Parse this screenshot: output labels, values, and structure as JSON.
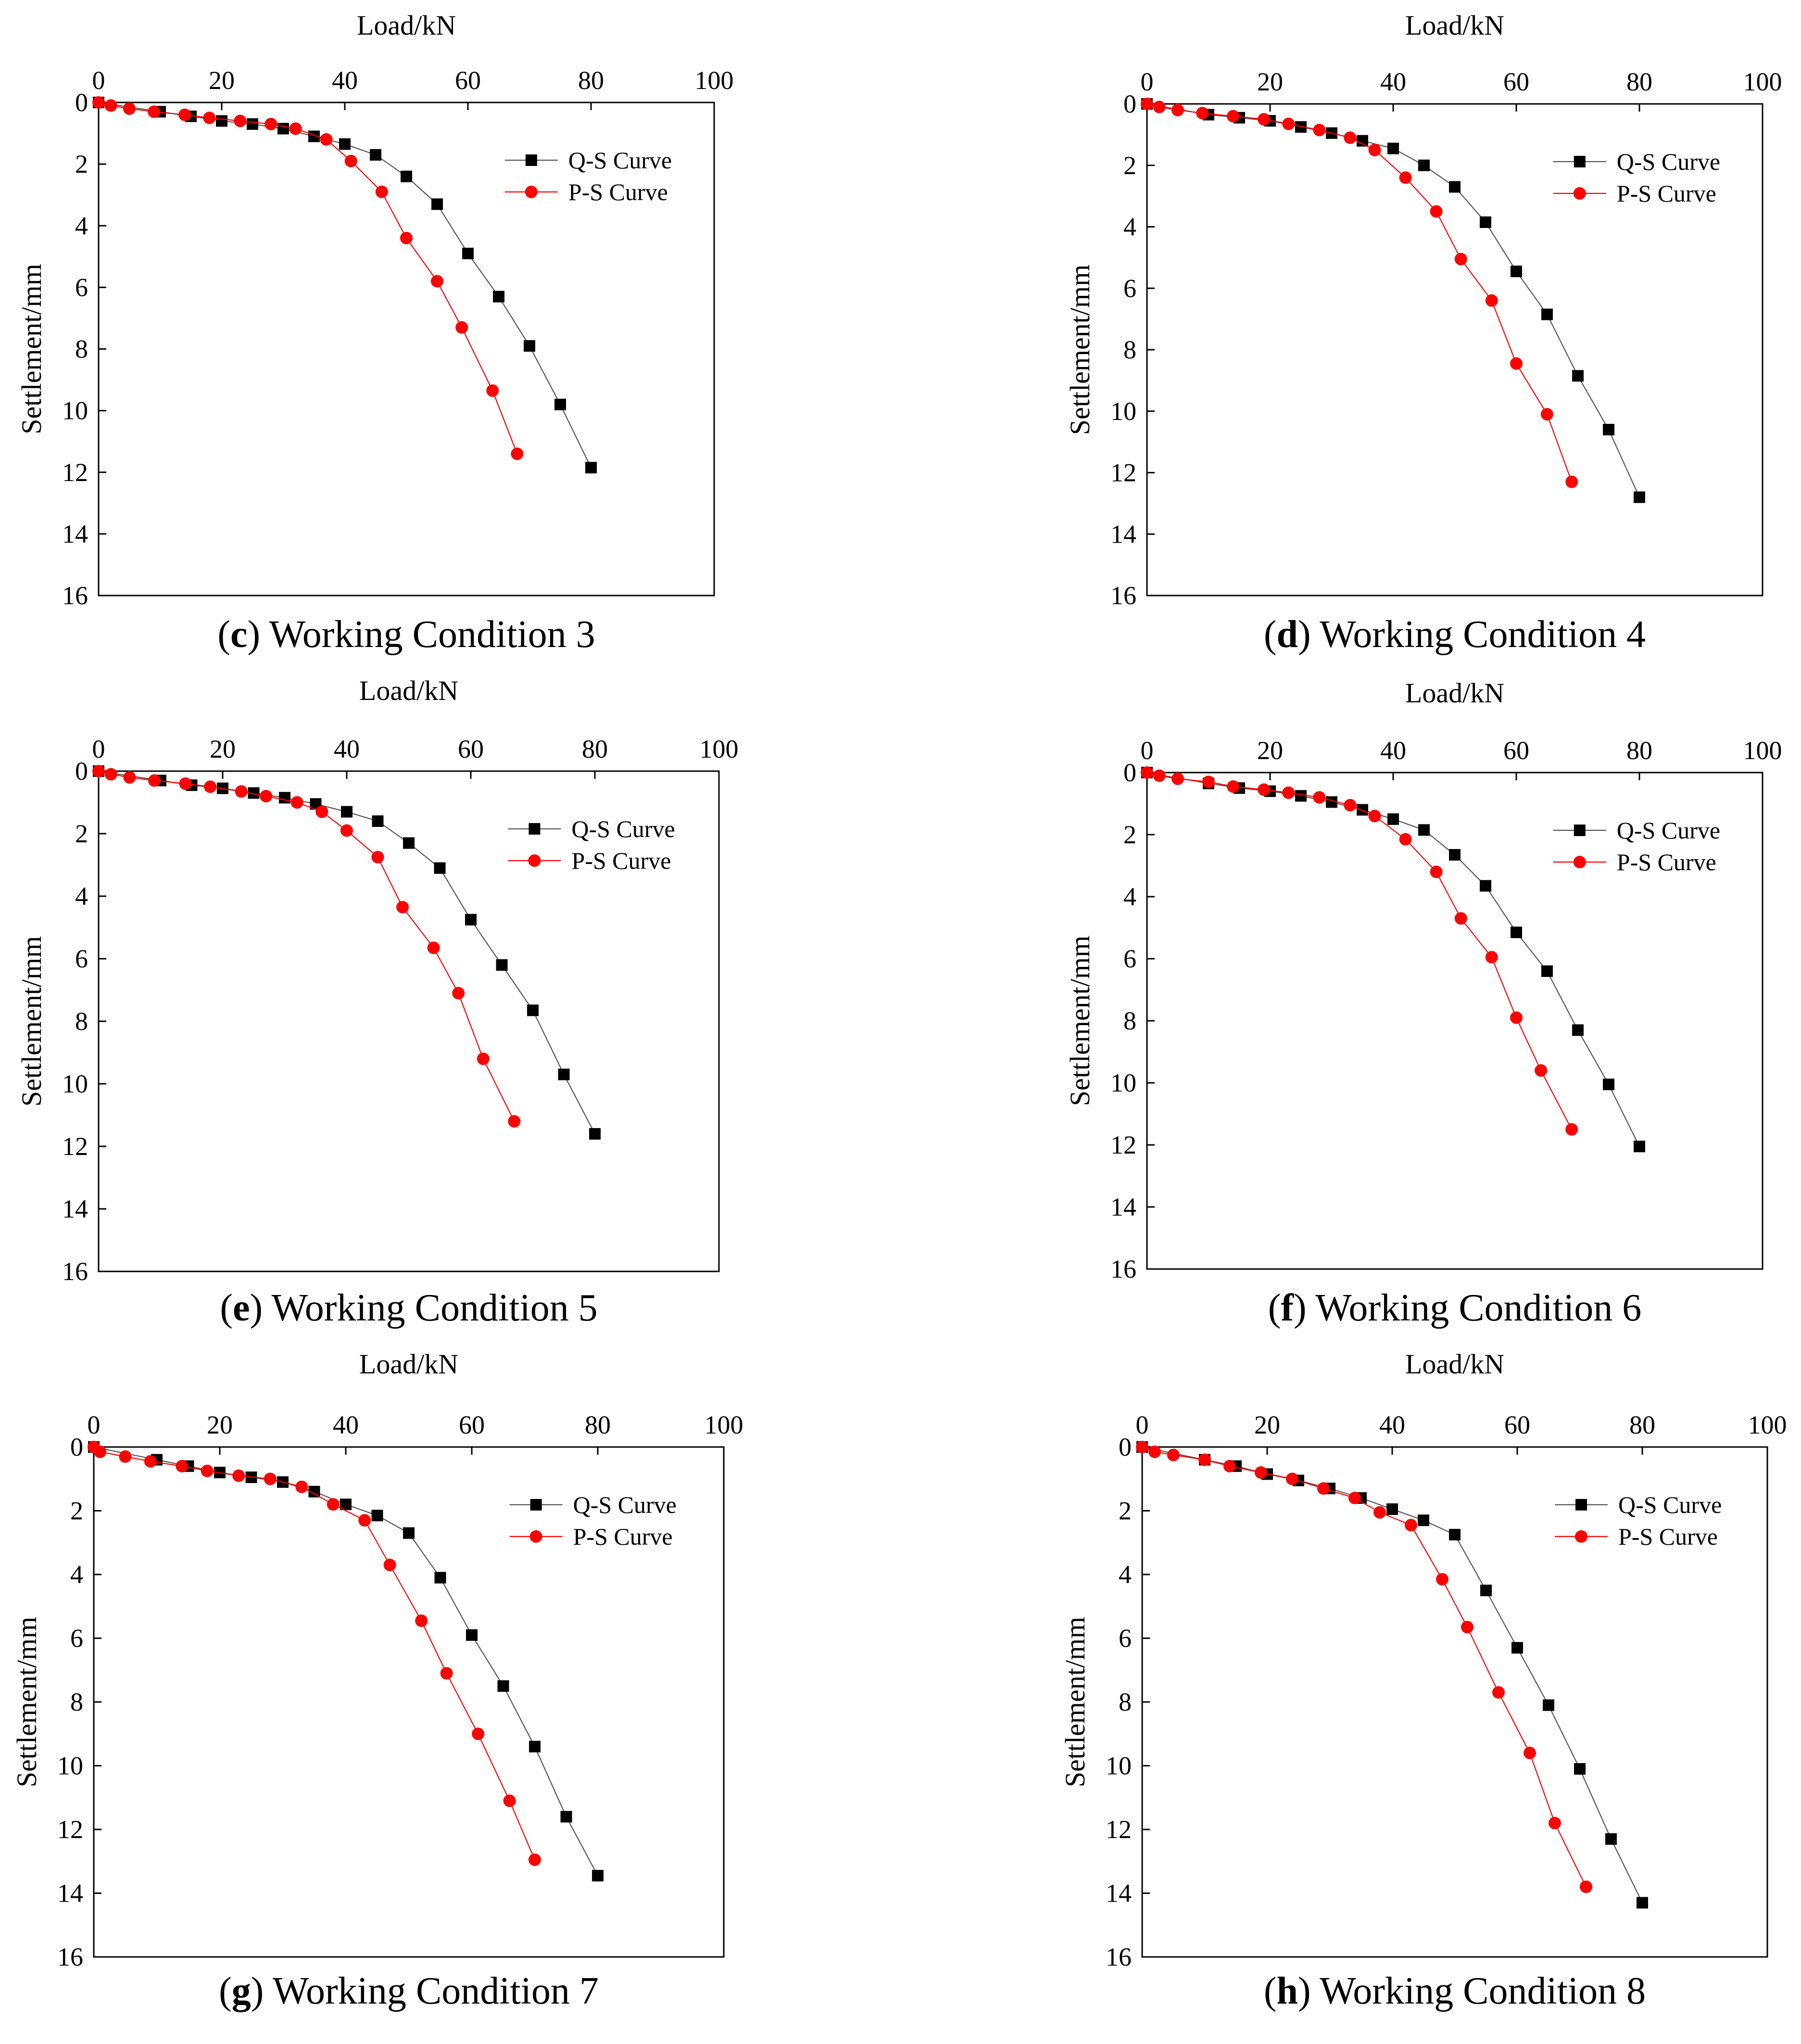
{
  "figure": {
    "panels": [
      {
        "id": "c",
        "caption": {
          "letter": "c",
          "paren_open": "(",
          "paren_close": ")",
          "text": " Working Condition 3"
        }
      },
      {
        "id": "d",
        "caption": {
          "letter": "d",
          "paren_open": "(",
          "paren_close": ")",
          "text": " Working Condition 4"
        }
      },
      {
        "id": "e",
        "caption": {
          "letter": "e",
          "paren_open": "(",
          "paren_close": ")",
          "text": " Working Condition 5"
        }
      },
      {
        "id": "f",
        "caption": {
          "letter": "f",
          "paren_open": "(",
          "paren_close": ")",
          "text": " Working Condition 6"
        }
      },
      {
        "id": "g",
        "caption": {
          "letter": "g",
          "paren_open": "(",
          "paren_close": ")",
          "text": " Working Condition 7"
        }
      },
      {
        "id": "h",
        "caption": {
          "letter": "h",
          "paren_open": "(",
          "paren_close": ")",
          "text": " Working Condition 8"
        }
      }
    ]
  },
  "chart_data": [
    {
      "type": "scatter",
      "title": "(c) Working Condition 3",
      "xlabel": "Load/kN",
      "ylabel": "Settlement/mm",
      "xlim": [
        0,
        100
      ],
      "ylim": [
        0,
        16
      ],
      "xticks": [
        "0",
        "20",
        "40",
        "60",
        "80",
        "100"
      ],
      "yticks": [
        "0",
        "2",
        "4",
        "6",
        "8",
        "10",
        "12",
        "14",
        "16"
      ],
      "legend_position": "top-right",
      "series": [
        {
          "name": "Q-S Curve",
          "color": "#000000",
          "marker": "square",
          "x": [
            0,
            10,
            15,
            20,
            25,
            30,
            35,
            40,
            45,
            50,
            55,
            60,
            65,
            70,
            75,
            80
          ],
          "y": [
            0,
            0.3,
            0.45,
            0.6,
            0.7,
            0.85,
            1.1,
            1.35,
            1.7,
            2.4,
            3.3,
            4.9,
            6.3,
            7.9,
            9.8,
            11.85
          ]
        },
        {
          "name": "P-S Curve",
          "color": "#ff0000",
          "marker": "circle",
          "x": [
            0,
            2,
            5,
            9,
            14,
            18,
            23,
            28,
            32,
            37,
            41,
            46,
            50,
            55,
            59,
            64,
            68
          ],
          "y": [
            0,
            0.1,
            0.2,
            0.3,
            0.4,
            0.5,
            0.6,
            0.7,
            0.85,
            1.2,
            1.9,
            2.9,
            4.4,
            5.8,
            7.3,
            9.35,
            11.4
          ]
        }
      ]
    },
    {
      "type": "scatter",
      "title": "(d) Working Condition 4",
      "xlabel": "Load/kN",
      "ylabel": "Settlement/mm",
      "xlim": [
        0,
        100
      ],
      "ylim": [
        0,
        16
      ],
      "xticks": [
        "0",
        "20",
        "40",
        "60",
        "80",
        "100"
      ],
      "yticks": [
        "0",
        "2",
        "4",
        "6",
        "8",
        "10",
        "12",
        "14",
        "16"
      ],
      "legend_position": "top-right",
      "series": [
        {
          "name": "Q-S Curve",
          "color": "#000000",
          "marker": "square",
          "x": [
            0,
            10,
            15,
            20,
            25,
            30,
            35,
            40,
            45,
            50,
            55,
            60,
            65,
            70,
            75,
            80
          ],
          "y": [
            0,
            0.35,
            0.45,
            0.55,
            0.75,
            0.95,
            1.2,
            1.45,
            2.0,
            2.7,
            3.85,
            5.45,
            6.85,
            8.85,
            10.6,
            12.8
          ]
        },
        {
          "name": "P-S Curve",
          "color": "#ff0000",
          "marker": "circle",
          "x": [
            0,
            2,
            5,
            9,
            14,
            19,
            23,
            28,
            33,
            37,
            42,
            47,
            51,
            56,
            60,
            65,
            69
          ],
          "y": [
            0,
            0.1,
            0.2,
            0.3,
            0.4,
            0.5,
            0.65,
            0.85,
            1.1,
            1.5,
            2.4,
            3.5,
            5.05,
            6.4,
            8.45,
            10.1,
            12.3
          ]
        }
      ]
    },
    {
      "type": "scatter",
      "title": "(e) Working Condition 5",
      "xlabel": "Load/kN",
      "ylabel": "Settlement/mm",
      "xlim": [
        0,
        100
      ],
      "ylim": [
        0,
        16
      ],
      "xticks": [
        "0",
        "20",
        "40",
        "60",
        "80",
        "100"
      ],
      "yticks": [
        "0",
        "2",
        "4",
        "6",
        "8",
        "10",
        "12",
        "14",
        "16"
      ],
      "legend_position": "top-right",
      "series": [
        {
          "name": "Q-S Curve",
          "color": "#000000",
          "marker": "square",
          "x": [
            0,
            10,
            15,
            20,
            25,
            30,
            35,
            40,
            45,
            50,
            55,
            60,
            65,
            70,
            75,
            80
          ],
          "y": [
            0,
            0.3,
            0.45,
            0.55,
            0.7,
            0.85,
            1.05,
            1.3,
            1.6,
            2.3,
            3.1,
            4.75,
            6.2,
            7.65,
            9.7,
            11.6
          ]
        },
        {
          "name": "P-S Curve",
          "color": "#ff0000",
          "marker": "circle",
          "x": [
            0,
            2,
            5,
            9,
            14,
            18,
            23,
            27,
            32,
            36,
            40,
            45,
            49,
            54,
            58,
            62,
            67
          ],
          "y": [
            0,
            0.1,
            0.2,
            0.3,
            0.4,
            0.5,
            0.65,
            0.8,
            1.0,
            1.3,
            1.9,
            2.75,
            4.35,
            5.65,
            7.1,
            9.2,
            11.2
          ]
        }
      ]
    },
    {
      "type": "scatter",
      "title": "(f) Working Condition 6",
      "xlabel": "Load/kN",
      "ylabel": "Settlement/mm",
      "xlim": [
        0,
        100
      ],
      "ylim": [
        0,
        16
      ],
      "xticks": [
        "0",
        "20",
        "40",
        "60",
        "80",
        "100"
      ],
      "yticks": [
        "0",
        "2",
        "4",
        "6",
        "8",
        "10",
        "12",
        "14",
        "16"
      ],
      "legend_position": "top-right",
      "series": [
        {
          "name": "Q-S Curve",
          "color": "#000000",
          "marker": "square",
          "x": [
            0,
            10,
            15,
            20,
            25,
            30,
            35,
            40,
            45,
            50,
            55,
            60,
            65,
            70,
            75,
            80
          ],
          "y": [
            0,
            0.35,
            0.5,
            0.6,
            0.75,
            0.95,
            1.2,
            1.5,
            1.85,
            2.65,
            3.65,
            5.15,
            6.4,
            8.3,
            10.05,
            12.05
          ]
        },
        {
          "name": "P-S Curve",
          "color": "#ff0000",
          "marker": "circle",
          "x": [
            0,
            2,
            5,
            10,
            14,
            19,
            23,
            28,
            33,
            37,
            42,
            47,
            51,
            56,
            60,
            64,
            69
          ],
          "y": [
            0,
            0.1,
            0.2,
            0.3,
            0.45,
            0.55,
            0.65,
            0.8,
            1.05,
            1.4,
            2.15,
            3.2,
            4.7,
            5.95,
            7.9,
            9.6,
            11.5
          ]
        }
      ]
    },
    {
      "type": "scatter",
      "title": "(g) Working Condition 7",
      "xlabel": "Load/kN",
      "ylabel": "Settlement/mm",
      "xlim": [
        0,
        100
      ],
      "ylim": [
        0,
        16
      ],
      "xticks": [
        "0",
        "20",
        "40",
        "60",
        "80",
        "100"
      ],
      "yticks": [
        "0",
        "2",
        "4",
        "6",
        "8",
        "10",
        "12",
        "14",
        "16"
      ],
      "legend_position": "top-right",
      "series": [
        {
          "name": "Q-S Curve",
          "color": "#000000",
          "marker": "square",
          "x": [
            0,
            10,
            15,
            20,
            25,
            30,
            35,
            40,
            45,
            50,
            55,
            60,
            65,
            70,
            75,
            80
          ],
          "y": [
            0,
            0.4,
            0.6,
            0.8,
            0.95,
            1.1,
            1.4,
            1.8,
            2.15,
            2.7,
            4.1,
            5.9,
            7.5,
            9.4,
            11.6,
            13.45
          ]
        },
        {
          "name": "P-S Curve",
          "color": "#ff0000",
          "marker": "circle",
          "x": [
            0,
            1,
            5,
            9,
            14,
            18,
            23,
            28,
            33,
            38,
            43,
            47,
            52,
            56,
            61,
            66,
            70
          ],
          "y": [
            0,
            0.15,
            0.3,
            0.45,
            0.6,
            0.75,
            0.9,
            1.0,
            1.25,
            1.8,
            2.3,
            3.7,
            5.45,
            7.1,
            9.0,
            11.1,
            12.95
          ]
        }
      ]
    },
    {
      "type": "scatter",
      "title": "(h) Working Condition 8",
      "xlabel": "Load/kN",
      "ylabel": "Settlement/mm",
      "xlim": [
        0,
        100
      ],
      "ylim": [
        0,
        16
      ],
      "xticks": [
        "0",
        "20",
        "40",
        "60",
        "80",
        "100"
      ],
      "yticks": [
        "0",
        "2",
        "4",
        "6",
        "8",
        "10",
        "12",
        "14",
        "16"
      ],
      "legend_position": "top-right",
      "series": [
        {
          "name": "Q-S Curve",
          "color": "#000000",
          "marker": "square",
          "x": [
            0,
            10,
            15,
            20,
            25,
            30,
            35,
            40,
            45,
            50,
            55,
            60,
            65,
            70,
            75,
            80
          ],
          "y": [
            0,
            0.4,
            0.6,
            0.85,
            1.05,
            1.3,
            1.6,
            1.95,
            2.3,
            2.75,
            4.5,
            6.3,
            8.1,
            10.1,
            12.3,
            14.3
          ]
        },
        {
          "name": "P-S Curve",
          "color": "#ff0000",
          "marker": "circle",
          "x": [
            0,
            2,
            5,
            10,
            14,
            19,
            24,
            29,
            34,
            38,
            43,
            48,
            52,
            57,
            62,
            66,
            71
          ],
          "y": [
            0,
            0.15,
            0.25,
            0.4,
            0.6,
            0.8,
            1.0,
            1.3,
            1.6,
            2.05,
            2.45,
            4.15,
            5.65,
            7.7,
            9.6,
            11.8,
            13.8
          ]
        }
      ]
    }
  ]
}
